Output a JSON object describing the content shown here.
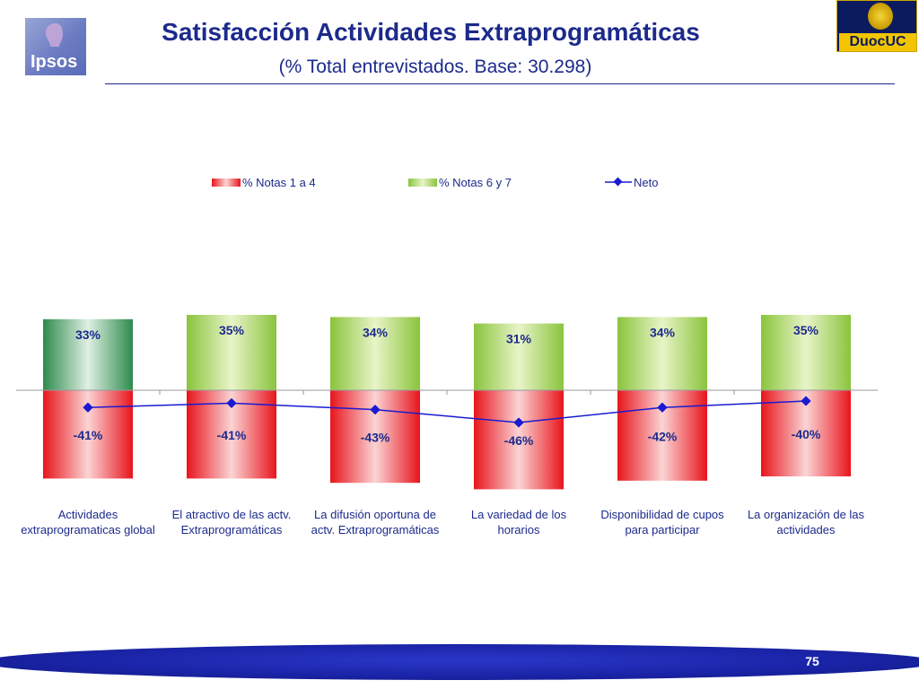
{
  "header": {
    "title": "Satisfacción Actividades Extraprogramáticas",
    "subtitle": "(% Total entrevistados. Base: 30.298)",
    "ipsos_logo_text": "Ipsos",
    "duoc_logo_text": "DuocUC"
  },
  "footer": {
    "page_number": "75"
  },
  "colors": {
    "title": "#1c2a8c",
    "neg_bar": "#e8141c",
    "pos_bar": "#8ac43c",
    "pos_bar_first": "#2e8a4e",
    "neto_line": "#1a1ad0"
  },
  "chart_data": {
    "type": "bar",
    "categories": [
      "Actividades extraprogramaticas global",
      "El atractivo de las actv. Extraprogramáticas",
      "La difusión oportuna de actv. Extraprogramáticas",
      "La variedad de los horarios",
      "Disponibilidad de cupos para participar",
      "La organización de las actividades"
    ],
    "category_lines": [
      [
        "Actividades",
        "extraprogramaticas global"
      ],
      [
        "El atractivo de las actv.",
        "Extraprogramáticas"
      ],
      [
        "La difusión oportuna de",
        "actv. Extraprogramáticas"
      ],
      [
        "La variedad de los",
        "horarios"
      ],
      [
        "Disponibilidad de cupos",
        "para participar"
      ],
      [
        "La organización de las",
        "actividades"
      ]
    ],
    "series": [
      {
        "name": "% Notas 1 a 4",
        "values": [
          -41,
          -41,
          -43,
          -46,
          -42,
          -40
        ],
        "labels": [
          "-41%",
          "-41%",
          "-43%",
          "-46%",
          "-42%",
          "-40%"
        ],
        "kind": "bar"
      },
      {
        "name": "% Notas 6 y 7",
        "values": [
          33,
          35,
          34,
          31,
          34,
          35
        ],
        "labels": [
          "33%",
          "35%",
          "34%",
          "31%",
          "34%",
          "35%"
        ],
        "kind": "bar"
      },
      {
        "name": "Neto",
        "values": [
          -8,
          -6,
          -9,
          -15,
          -8,
          -5
        ],
        "kind": "line"
      }
    ],
    "legend_position": "top",
    "grid": false
  }
}
